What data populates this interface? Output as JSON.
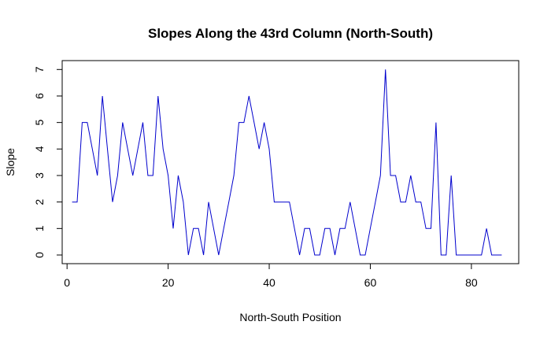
{
  "chart_data": {
    "type": "line",
    "title": "Slopes Along the 43rd Column (North-South)",
    "xlabel": "North-South Position",
    "ylabel": "Slope",
    "xlim": [
      0,
      86
    ],
    "ylim": [
      0,
      7
    ],
    "xticks": [
      0,
      20,
      40,
      60,
      80
    ],
    "yticks": [
      0,
      1,
      2,
      3,
      4,
      5,
      6,
      7
    ],
    "line_color": "#0000cd",
    "x": [
      1,
      2,
      3,
      4,
      5,
      6,
      7,
      8,
      9,
      10,
      11,
      12,
      13,
      14,
      15,
      16,
      17,
      18,
      19,
      20,
      21,
      22,
      23,
      24,
      25,
      26,
      27,
      28,
      29,
      30,
      31,
      32,
      33,
      34,
      35,
      36,
      37,
      38,
      39,
      40,
      41,
      42,
      43,
      44,
      45,
      46,
      47,
      48,
      49,
      50,
      51,
      52,
      53,
      54,
      55,
      56,
      57,
      58,
      59,
      60,
      61,
      62,
      63,
      64,
      65,
      66,
      67,
      68,
      69,
      70,
      71,
      72,
      73,
      74,
      75,
      76,
      77,
      78,
      79,
      80,
      81,
      82,
      83,
      84,
      85,
      86
    ],
    "y": [
      2,
      2,
      5,
      5,
      4,
      3,
      6,
      4,
      2,
      3,
      5,
      4,
      3,
      4,
      5,
      3,
      3,
      6,
      4,
      3,
      1,
      3,
      2,
      0,
      1,
      1,
      0,
      2,
      1,
      0,
      1,
      2,
      3,
      5,
      5,
      6,
      5,
      4,
      5,
      4,
      2,
      2,
      2,
      2,
      1,
      0,
      1,
      1,
      0,
      0,
      1,
      1,
      0,
      1,
      1,
      2,
      1,
      0,
      0,
      1,
      2,
      3,
      7,
      3,
      3,
      2,
      2,
      3,
      2,
      2,
      1,
      1,
      5,
      0,
      0,
      3,
      0,
      0,
      0,
      0,
      0,
      0,
      1,
      0,
      0,
      0
    ]
  }
}
